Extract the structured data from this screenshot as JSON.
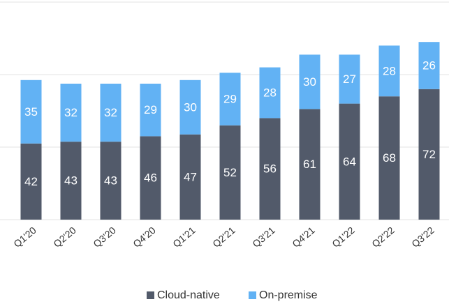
{
  "chart_data": {
    "type": "stacked_bar",
    "categories": [
      "Q1'20",
      "Q2'20",
      "Q3'20",
      "Q4'20",
      "Q1'21",
      "Q2'21",
      "Q3'21",
      "Q4'21",
      "Q1'22",
      "Q2'22",
      "Q3'22"
    ],
    "series": [
      {
        "name": "Cloud-native",
        "color": "#525a6a",
        "values": [
          42,
          43,
          43,
          46,
          47,
          52,
          56,
          61,
          64,
          68,
          72
        ]
      },
      {
        "name": "On-premise",
        "color": "#62b2f4",
        "values": [
          35,
          32,
          32,
          29,
          30,
          29,
          28,
          30,
          27,
          28,
          26
        ]
      }
    ],
    "ylim": [
      0,
      120
    ],
    "yticks": [
      0,
      40,
      80,
      120
    ],
    "grid": true,
    "legend": "bottom"
  }
}
